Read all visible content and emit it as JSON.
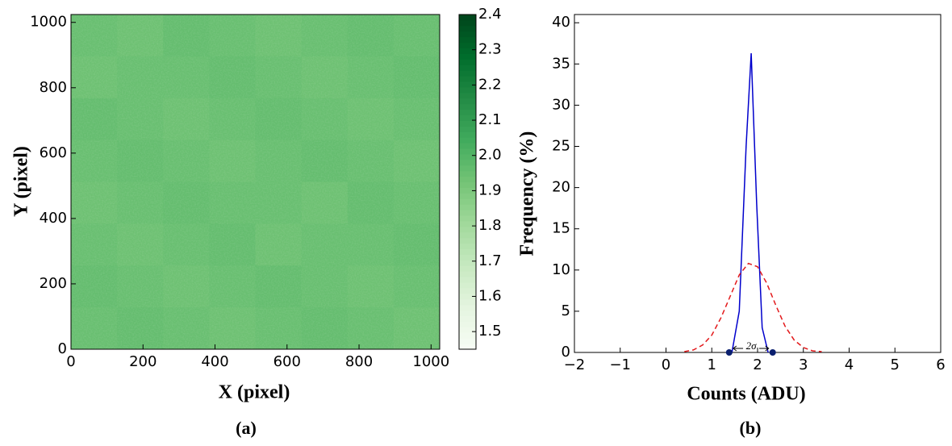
{
  "chart_data": [
    {
      "type": "heatmap",
      "xlabel": "X (pixel)",
      "ylabel": "Y (pixel)",
      "caption": "(a)",
      "xlim": [
        0,
        1024
      ],
      "xticks": [
        0,
        200,
        400,
        600,
        800,
        1000
      ],
      "ylim": [
        0,
        1024
      ],
      "yticks": [
        0,
        200,
        400,
        600,
        800,
        1000
      ],
      "colormap": [
        "#f7fcf5",
        "#e5f5e0",
        "#c7e9c0",
        "#a1d99b",
        "#74c476",
        "#41ab5d",
        "#238b45",
        "#006d2c",
        "#00441b"
      ],
      "colorbar": {
        "lim": [
          1.45,
          2.4
        ],
        "ticks": [
          1.5,
          1.6,
          1.7,
          1.8,
          1.9,
          {
            "value": 2,
            "label": "2.0"
          },
          2.1,
          2.2,
          2.3,
          2.4
        ]
      },
      "z": [
        [
          1.95,
          1.94,
          1.96,
          1.95,
          1.94,
          1.95,
          1.96,
          1.95
        ],
        [
          1.94,
          1.95,
          1.95,
          1.96,
          1.95,
          1.94,
          1.95,
          1.96
        ],
        [
          1.96,
          1.95,
          1.94,
          1.95,
          1.96,
          1.95,
          1.94,
          1.95
        ],
        [
          1.95,
          1.96,
          1.95,
          1.94,
          1.95,
          1.96,
          1.95,
          1.94
        ],
        [
          1.94,
          1.95,
          1.96,
          1.95,
          1.95,
          1.94,
          1.96,
          1.95
        ],
        [
          1.95,
          1.94,
          1.95,
          1.96,
          1.94,
          1.95,
          1.95,
          1.96
        ],
        [
          1.96,
          1.95,
          1.94,
          1.95,
          1.96,
          1.95,
          1.94,
          1.95
        ],
        [
          1.95,
          1.96,
          1.95,
          1.94,
          1.95,
          1.96,
          1.95,
          1.94
        ]
      ]
    },
    {
      "type": "line",
      "xlabel": "Counts (ADU)",
      "ylabel": "Frequency (%)",
      "caption": "(b)",
      "xlim": [
        -2,
        6
      ],
      "xticks": [
        {
          "value": -2,
          "label": "−2"
        },
        {
          "value": -1,
          "label": "−1"
        },
        0,
        1,
        2,
        3,
        4,
        5,
        6
      ],
      "ylim": [
        0,
        41
      ],
      "yticks": [
        0,
        5,
        10,
        15,
        20,
        25,
        30,
        35,
        40
      ],
      "series": [
        {
          "color": "#0000cc",
          "style": "solid",
          "x": [
            1.44,
            1.6,
            1.75,
            1.86,
            1.98,
            2.1,
            2.23
          ],
          "values": [
            0,
            5,
            25,
            36.3,
            18,
            3,
            0
          ]
        },
        {
          "color": "#e31a1c",
          "style": "dashed",
          "x": [
            0.4,
            0.6,
            0.8,
            1.0,
            1.2,
            1.4,
            1.6,
            1.8,
            2.0,
            2.2,
            2.4,
            2.6,
            2.8,
            3.0,
            3.2,
            3.4
          ],
          "values": [
            0.1,
            0.3,
            0.9,
            2.1,
            4.2,
            6.8,
            9.4,
            10.8,
            10.4,
            8.4,
            5.7,
            3.2,
            1.5,
            0.6,
            0.2,
            0.1
          ]
        },
        {
          "color": "#0a1f6e",
          "style": "markers",
          "x": [
            1.38,
            2.33
          ],
          "values": [
            0,
            0
          ]
        }
      ],
      "annotations": [
        {
          "text": "2σ",
          "x": 1.86,
          "y": 0
        }
      ]
    }
  ]
}
